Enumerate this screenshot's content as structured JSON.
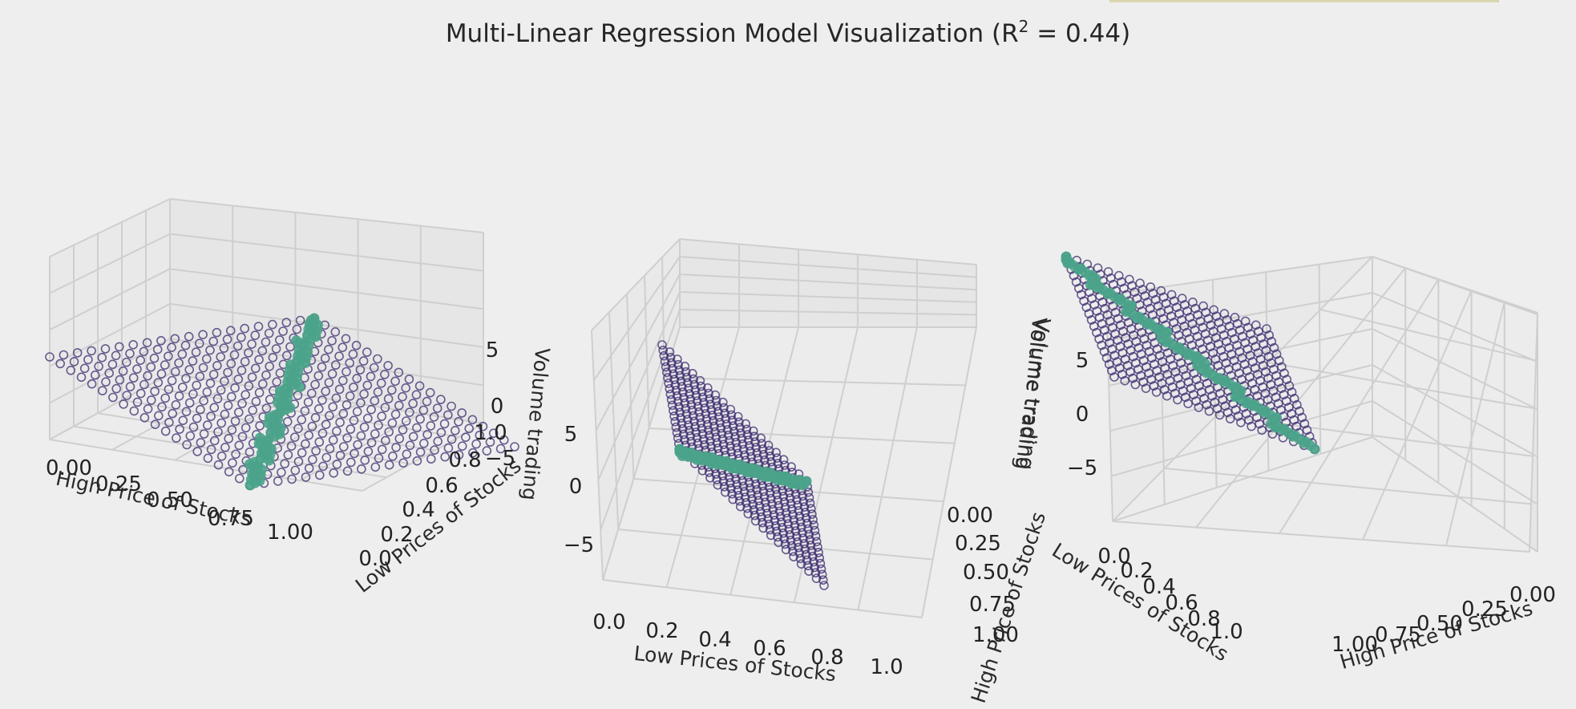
{
  "figure": {
    "title": "Multi-Linear Regression Model Visualization ($R^2 = 0.44$)",
    "title_text": "Multi-Linear Regression Model Visualization (R",
    "title_sup": "2",
    "title_tail": " = 0.44)",
    "colors": {
      "background": "#eeeeee",
      "pane": "#e8e8e8",
      "grid": "#cfcfcf",
      "data_points": "#3b2a6e",
      "fitted_points": "#4aa38a"
    }
  },
  "chart_data": [
    {
      "type": "scatter",
      "view": "left",
      "xlabel": "High Price of Stocks",
      "ylabel": "Low Prices of Stocks",
      "zlabel": "Volume trading",
      "x_ticks": [
        "0.00",
        "0.25",
        "0.50",
        "0.75",
        "1.00"
      ],
      "y_ticks": [
        "0.0",
        "0.2",
        "0.4",
        "0.6",
        "0.8",
        "1.0"
      ],
      "z_ticks": [
        "−5",
        "0",
        "5"
      ],
      "xlim": [
        0,
        1
      ],
      "ylim": [
        0,
        1
      ],
      "zlim": [
        -7,
        7
      ],
      "series": [
        {
          "marker": "hollow-circle",
          "surface": "z = -6 + 2x + 10y",
          "grid_points": "20 x 20 over [0,1] x [0,1]"
        },
        {
          "marker": "filled-circle",
          "line": "x = y, z = -6 + 12x"
        }
      ]
    },
    {
      "type": "scatter",
      "view": "middle",
      "xlabel": "Low Prices of Stocks",
      "ylabel": "High Price of Stocks",
      "zlabel": "Volume trading",
      "x_ticks": [
        "0.0",
        "0.2",
        "0.4",
        "0.6",
        "0.8",
        "1.0"
      ],
      "y_ticks": [
        "0.00",
        "0.25",
        "0.50",
        "0.75",
        "1.00"
      ],
      "z_ticks": [
        "−5",
        "0",
        "5"
      ],
      "xlim": [
        0,
        1
      ],
      "ylim": [
        0,
        1
      ],
      "zlim": [
        -7,
        7
      ]
    },
    {
      "type": "scatter",
      "view": "right",
      "xlabel": "High Price of Stocks",
      "ylabel": "Low Prices of Stocks",
      "zlabel": "Volume trading",
      "x_ticks": [
        "0.00",
        "0.25",
        "0.50",
        "0.75",
        "1.00"
      ],
      "y_ticks": [
        "0.0",
        "0.2",
        "0.4",
        "0.6",
        "0.8",
        "1.0"
      ],
      "z_ticks": [
        "−5",
        "0",
        "5"
      ],
      "xlim": [
        0,
        1
      ],
      "ylim": [
        0,
        1
      ],
      "zlim": [
        -7,
        7
      ]
    }
  ]
}
